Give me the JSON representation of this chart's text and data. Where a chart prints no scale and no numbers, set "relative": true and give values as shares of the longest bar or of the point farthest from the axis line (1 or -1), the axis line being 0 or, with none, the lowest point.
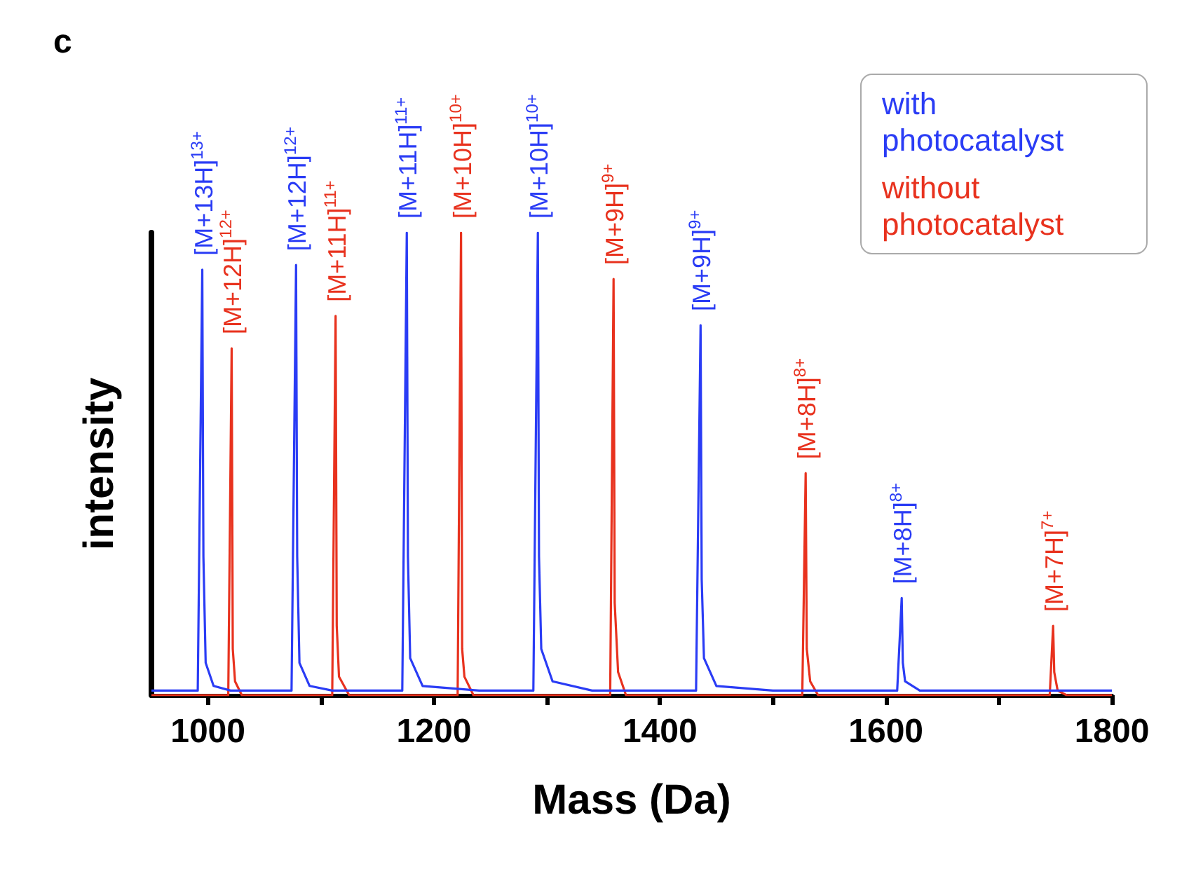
{
  "chart_data": {
    "type": "line",
    "relative": true,
    "xlabel": "Mass (Da)",
    "ylabel": "intensity",
    "xlim": [
      950,
      1800
    ],
    "xticks": [
      1000,
      {
        "value": 1100,
        "label": null
      },
      1200,
      {
        "value": 1300,
        "label": null
      },
      1400,
      {
        "value": 1500,
        "label": null
      },
      1600,
      {
        "value": 1700,
        "label": null
      },
      1800
    ],
    "tick_labels": "x",
    "grid": false,
    "legend": "top right",
    "marker": "none",
    "line_style": "solid",
    "series": [
      {
        "name": "with photocatalyst",
        "color": "#2a3cf5",
        "x": [
          950,
          991,
          995,
          996,
          998,
          1005,
          1020,
          1074,
          1078,
          1079,
          1081,
          1090,
          1110,
          1172,
          1176,
          1177,
          1179,
          1190,
          1240,
          1288,
          1292,
          1293,
          1295,
          1305,
          1340,
          1432,
          1436,
          1437,
          1439,
          1450,
          1500,
          1610,
          1614,
          1615,
          1617,
          1630,
          1800
        ],
        "values": [
          0.01,
          0.01,
          0.92,
          0.3,
          0.07,
          0.02,
          0.01,
          0.01,
          0.93,
          0.3,
          0.07,
          0.02,
          0.01,
          0.01,
          1.0,
          0.3,
          0.08,
          0.02,
          0.01,
          0.01,
          1.0,
          0.3,
          0.1,
          0.03,
          0.01,
          0.01,
          0.8,
          0.25,
          0.08,
          0.02,
          0.01,
          0.01,
          0.21,
          0.07,
          0.03,
          0.01,
          0.01
        ]
      },
      {
        "name": "without photocatalyst",
        "color": "#e8321e",
        "x": [
          950,
          1018,
          1021,
          1022,
          1024,
          1030,
          1110,
          1113,
          1114,
          1116,
          1125,
          1221,
          1224,
          1225,
          1227,
          1235,
          1356,
          1359,
          1360,
          1363,
          1370,
          1526,
          1529,
          1530,
          1533,
          1540,
          1745,
          1748,
          1749,
          1752,
          1760,
          1800
        ],
        "values": [
          0,
          0,
          0.75,
          0.1,
          0.03,
          0,
          0,
          0.82,
          0.15,
          0.04,
          0,
          0,
          1.0,
          0.1,
          0.04,
          0,
          0,
          0.9,
          0.2,
          0.05,
          0,
          0,
          0.48,
          0.1,
          0.03,
          0,
          0,
          0.15,
          0.05,
          0.01,
          0,
          0
        ]
      }
    ],
    "annotations": [
      "c",
      {
        "text": "[M+13H]$^{13+}$",
        "x": 995,
        "y": 0.92
      },
      {
        "text": "[M+12H]$^{12+}$",
        "x": 1021,
        "y": 0.75
      },
      {
        "text": "[M+12H]$^{12+}$",
        "x": 1078,
        "y": 0.93
      },
      {
        "text": "[M+11H]$^{11+}$",
        "x": 1113,
        "y": 0.82
      },
      {
        "text": "[M+11H]$^{11+}$",
        "x": 1176,
        "y": 1.0
      },
      {
        "text": "[M+10H]$^{10+}$",
        "x": 1224,
        "y": 1.0
      },
      {
        "text": "[M+10H]$^{10+}$",
        "x": 1292,
        "y": 1.0
      },
      {
        "text": "[M+9H]$^{9+}$",
        "x": 1359,
        "y": 0.9
      },
      {
        "text": "[M+9H]$^{9+}$",
        "x": 1436,
        "y": 0.8
      },
      {
        "text": "[M+8H]$^{8+}$",
        "x": 1529,
        "y": 0.48
      },
      {
        "text": "[M+8H]$^{8+}$",
        "x": 1614,
        "y": 0.21
      },
      {
        "text": "[M+7H]$^{7+}$",
        "x": 1748,
        "y": 0.15
      }
    ]
  }
}
